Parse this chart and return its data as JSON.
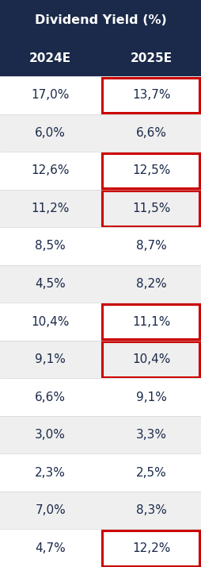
{
  "title": "Dividend Yield (%)",
  "col1_header": "2024E",
  "col2_header": "2025E",
  "rows": [
    {
      "val2024": "17,0%",
      "val2025": "13,7%",
      "highlight": true
    },
    {
      "val2024": "6,0%",
      "val2025": "6,6%",
      "highlight": false
    },
    {
      "val2024": "12,6%",
      "val2025": "12,5%",
      "highlight": true
    },
    {
      "val2024": "11,2%",
      "val2025": "11,5%",
      "highlight": true
    },
    {
      "val2024": "8,5%",
      "val2025": "8,7%",
      "highlight": false
    },
    {
      "val2024": "4,5%",
      "val2025": "8,2%",
      "highlight": false
    },
    {
      "val2024": "10,4%",
      "val2025": "11,1%",
      "highlight": true
    },
    {
      "val2024": "9,1%",
      "val2025": "10,4%",
      "highlight": true
    },
    {
      "val2024": "6,6%",
      "val2025": "9,1%",
      "highlight": false
    },
    {
      "val2024": "3,0%",
      "val2025": "3,3%",
      "highlight": false
    },
    {
      "val2024": "2,3%",
      "val2025": "2,5%",
      "highlight": false
    },
    {
      "val2024": "7,0%",
      "val2025": "8,3%",
      "highlight": false
    },
    {
      "val2024": "4,7%",
      "val2025": "12,2%",
      "highlight": true
    }
  ],
  "title_bg": "#1b2a4a",
  "header_bg": "#1b2a4a",
  "title_color": "#ffffff",
  "header_color": "#ffffff",
  "row_bg_odd": "#ffffff",
  "row_bg_even": "#efefef",
  "text_color": "#1b2a4a",
  "highlight_color": "#cc0000",
  "title_fontsize": 11.5,
  "header_fontsize": 11,
  "data_fontsize": 11
}
